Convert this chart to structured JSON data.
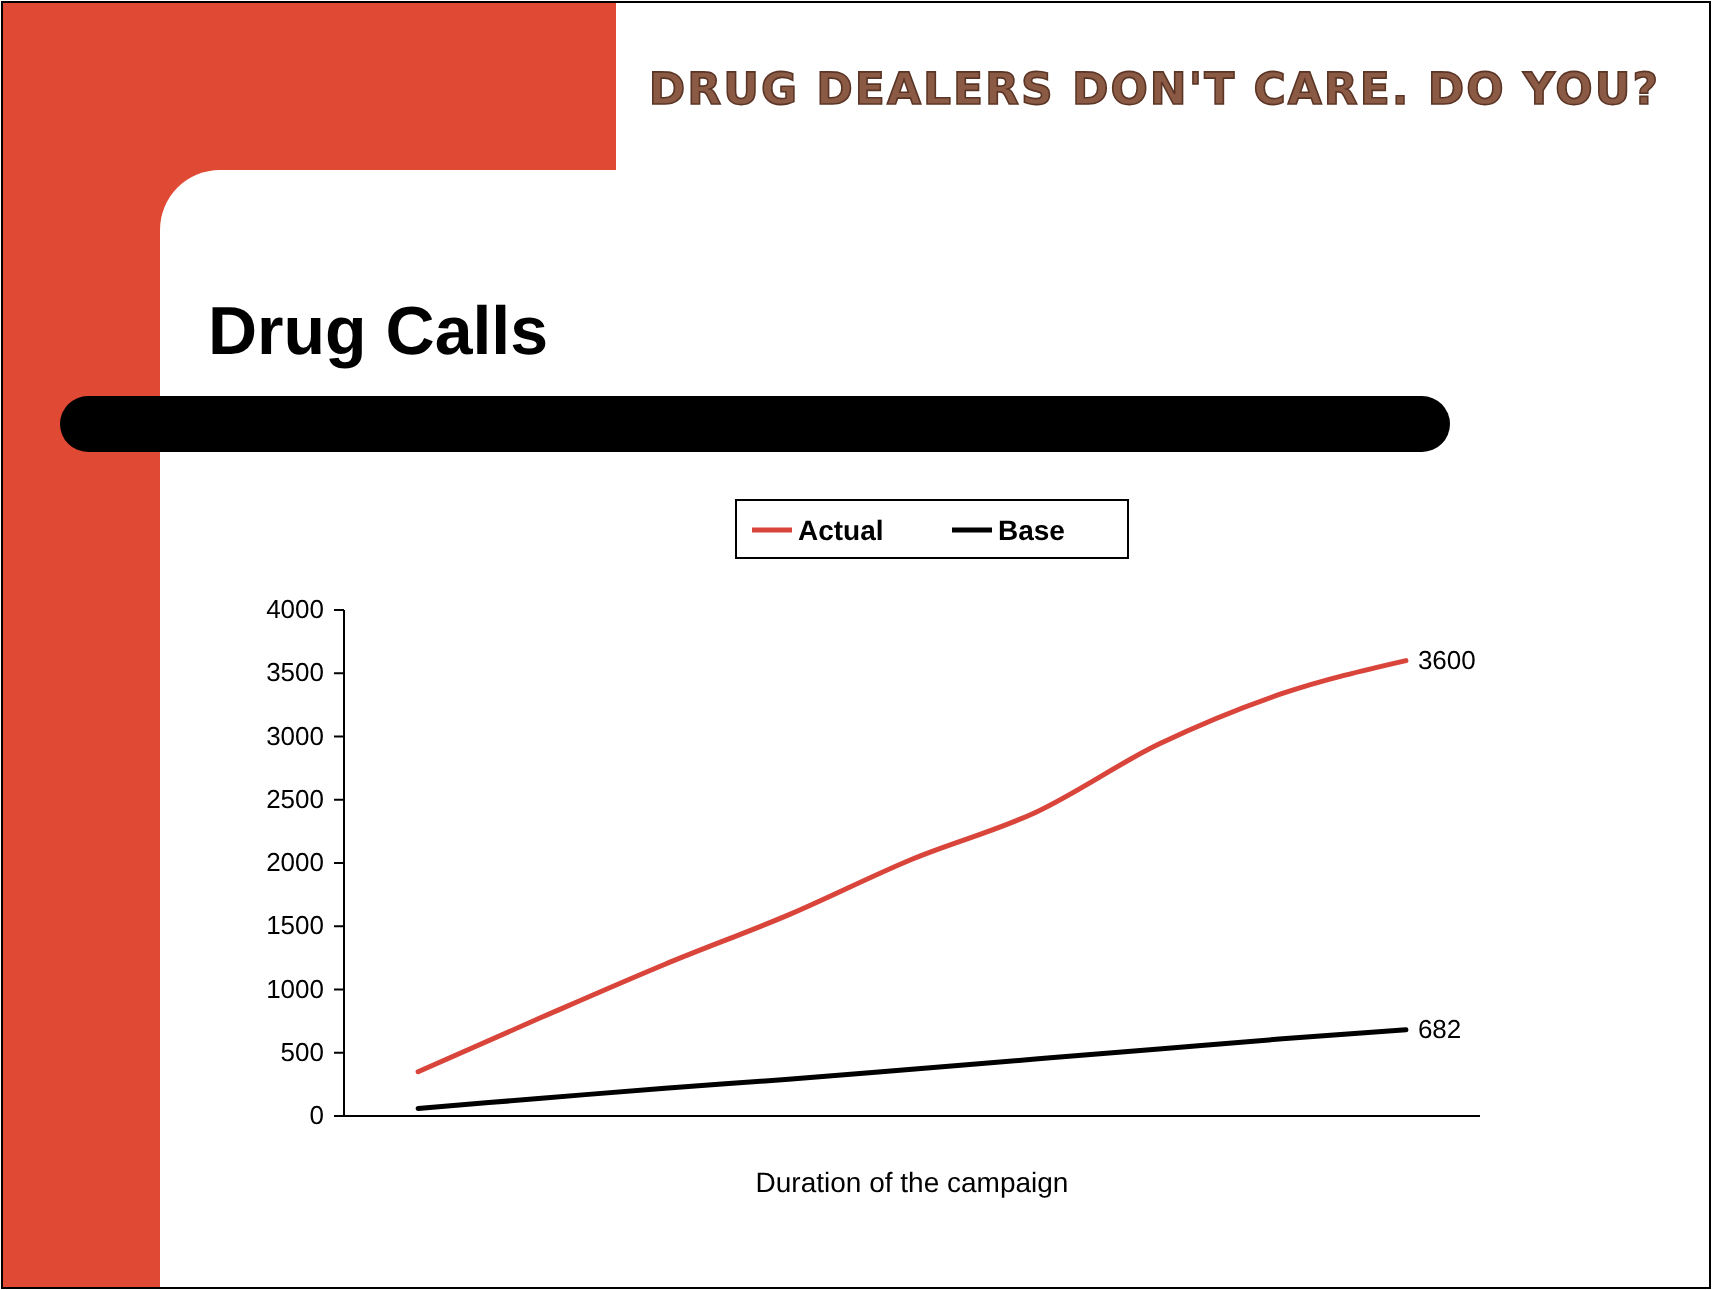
{
  "chart_data": {
    "type": "line",
    "title": "Drug Calls",
    "subtitle": "DRUG DEALERS DON'T CARE. DO YOU?",
    "xlabel": "Duration of the campaign",
    "categories": [
      null,
      null,
      null,
      null,
      null,
      null,
      null,
      null,
      null
    ],
    "series": [
      {
        "name": "Actual",
        "color": "#d9453b",
        "values": [
          350,
          780,
          1200,
          1590,
          2030,
          2400,
          2940,
          3340,
          3600
        ],
        "value_labels": [
          null,
          null,
          null,
          null,
          null,
          null,
          null,
          null,
          "3600"
        ]
      },
      {
        "name": "Base",
        "color": "#000000",
        "values": [
          60,
          140,
          220,
          290,
          370,
          450,
          530,
          610,
          682
        ],
        "value_labels": [
          null,
          null,
          null,
          null,
          null,
          null,
          null,
          null,
          "682"
        ]
      }
    ],
    "ylim": [
      0,
      4000
    ],
    "yticks": [
      0,
      500,
      1000,
      1500,
      2000,
      2500,
      3000,
      3500,
      4000
    ],
    "grid": false,
    "legend": "top",
    "marker": "none",
    "line_style": "solid"
  }
}
